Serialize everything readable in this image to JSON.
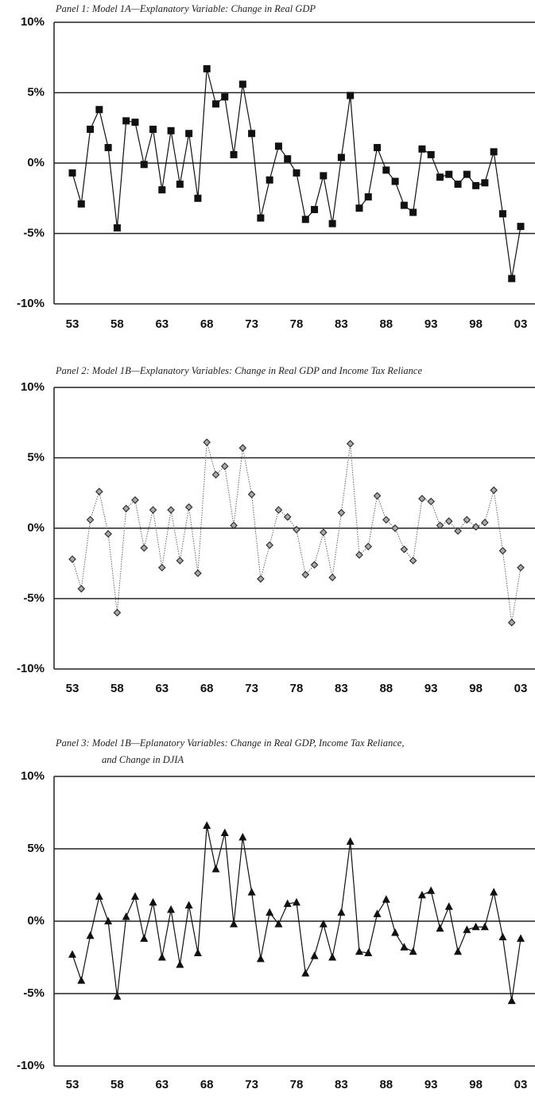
{
  "chart_data": [
    {
      "type": "line",
      "title": [
        "Panel 1: Model 1A—Explanatory Variable: Change in Real GDP"
      ],
      "categories": [
        "53",
        null,
        null,
        null,
        null,
        "58",
        null,
        null,
        null,
        null,
        "63",
        null,
        null,
        null,
        null,
        "68",
        null,
        null,
        null,
        null,
        "73",
        null,
        null,
        null,
        null,
        "78",
        null,
        null,
        null,
        null,
        "83",
        null,
        null,
        null,
        null,
        "88",
        null,
        null,
        null,
        null,
        "93",
        null,
        null,
        null,
        null,
        "98",
        null,
        null,
        null,
        null,
        "03"
      ],
      "values": [
        -0.7,
        -2.9,
        2.4,
        3.8,
        1.1,
        -4.6,
        3.0,
        2.9,
        -0.1,
        2.4,
        -1.9,
        2.3,
        -1.5,
        2.1,
        -2.5,
        6.7,
        4.2,
        4.7,
        0.6,
        5.6,
        2.1,
        -3.9,
        -1.2,
        1.2,
        0.3,
        -0.7,
        -4.0,
        -3.3,
        -0.9,
        -4.3,
        0.4,
        4.8,
        -3.2,
        -2.4,
        1.1,
        -0.5,
        -1.3,
        -3.0,
        -3.5,
        1.0,
        0.6,
        -1.0,
        -0.8,
        -1.5,
        -0.8,
        -1.6,
        -1.4,
        0.8,
        -3.6,
        -8.2,
        -4.5
      ],
      "color": "#111111",
      "marker": "square",
      "line_style": "solid",
      "ylim": [
        -10,
        10
      ],
      "yticks": [
        {
          "value": -10,
          "label": "-10%"
        },
        {
          "value": -5,
          "label": "-5%"
        },
        {
          "value": 0,
          "label": "0%"
        },
        {
          "value": 5,
          "label": "5%"
        },
        {
          "value": 10,
          "label": "10%"
        }
      ],
      "grid": true
    },
    {
      "type": "line",
      "title": [
        "Panel 2: Model 1B—Explanatory Variables: Change in Real GDP and Income Tax Reliance"
      ],
      "categories": [
        "53",
        null,
        null,
        null,
        null,
        "58",
        null,
        null,
        null,
        null,
        "63",
        null,
        null,
        null,
        null,
        "68",
        null,
        null,
        null,
        null,
        "73",
        null,
        null,
        null,
        null,
        "78",
        null,
        null,
        null,
        null,
        "83",
        null,
        null,
        null,
        null,
        "88",
        null,
        null,
        null,
        null,
        "93",
        null,
        null,
        null,
        null,
        "98",
        null,
        null,
        null,
        null,
        "03"
      ],
      "values": [
        -2.2,
        -4.3,
        0.6,
        2.6,
        -0.4,
        -6.0,
        1.4,
        2.0,
        -1.4,
        1.3,
        -2.8,
        1.3,
        -2.3,
        1.5,
        -3.2,
        6.1,
        3.8,
        4.4,
        0.2,
        5.7,
        2.4,
        -3.6,
        -1.2,
        1.3,
        0.8,
        -0.1,
        -3.3,
        -2.6,
        -0.3,
        -3.5,
        1.1,
        6.0,
        -1.9,
        -1.3,
        2.3,
        0.6,
        0.0,
        -1.5,
        -2.3,
        2.1,
        1.9,
        0.2,
        0.5,
        -0.2,
        0.6,
        0.1,
        0.4,
        2.7,
        -1.6,
        -6.7,
        -2.8
      ],
      "color": "#777777",
      "marker": "diamond",
      "line_style": "dotted",
      "ylim": [
        -10,
        10
      ],
      "yticks": [
        {
          "value": -10,
          "label": "-10%"
        },
        {
          "value": -5,
          "label": "-5%"
        },
        {
          "value": 0,
          "label": "0%"
        },
        {
          "value": 5,
          "label": "5%"
        },
        {
          "value": 10,
          "label": "10%"
        }
      ],
      "grid": true
    },
    {
      "type": "line",
      "title": [
        "Panel 3: Model 1B—Eplanatory Variables: Change in Real GDP, Income Tax Reliance,",
        "and Change in DJIA"
      ],
      "categories": [
        "53",
        null,
        null,
        null,
        null,
        "58",
        null,
        null,
        null,
        null,
        "63",
        null,
        null,
        null,
        null,
        "68",
        null,
        null,
        null,
        null,
        "73",
        null,
        null,
        null,
        null,
        "78",
        null,
        null,
        null,
        null,
        "83",
        null,
        null,
        null,
        null,
        "88",
        null,
        null,
        null,
        null,
        "93",
        null,
        null,
        null,
        null,
        "98",
        null,
        null,
        null,
        null,
        "03"
      ],
      "values": [
        -2.3,
        -4.1,
        -1.0,
        1.7,
        0.0,
        -5.2,
        0.3,
        1.7,
        -1.2,
        1.3,
        -2.5,
        0.8,
        -3.0,
        1.1,
        -2.2,
        6.6,
        3.6,
        6.1,
        -0.2,
        5.8,
        2.0,
        -2.6,
        0.6,
        -0.2,
        1.2,
        1.3,
        -3.6,
        -2.4,
        -0.2,
        -2.5,
        0.6,
        5.5,
        -2.1,
        -2.2,
        0.5,
        1.5,
        -0.8,
        -1.8,
        -2.1,
        1.8,
        2.1,
        -0.5,
        1.0,
        -2.1,
        -0.6,
        -0.4,
        -0.4,
        2.0,
        -1.1,
        -5.5,
        -1.2
      ],
      "color": "#111111",
      "marker": "triangle",
      "line_style": "solid",
      "ylim": [
        -10,
        10
      ],
      "yticks": [
        {
          "value": -10,
          "label": "-10%"
        },
        {
          "value": -5,
          "label": "-5%"
        },
        {
          "value": 0,
          "label": "0%"
        },
        {
          "value": 5,
          "label": "5%"
        },
        {
          "value": 10,
          "label": "10%"
        }
      ],
      "grid": true
    }
  ]
}
